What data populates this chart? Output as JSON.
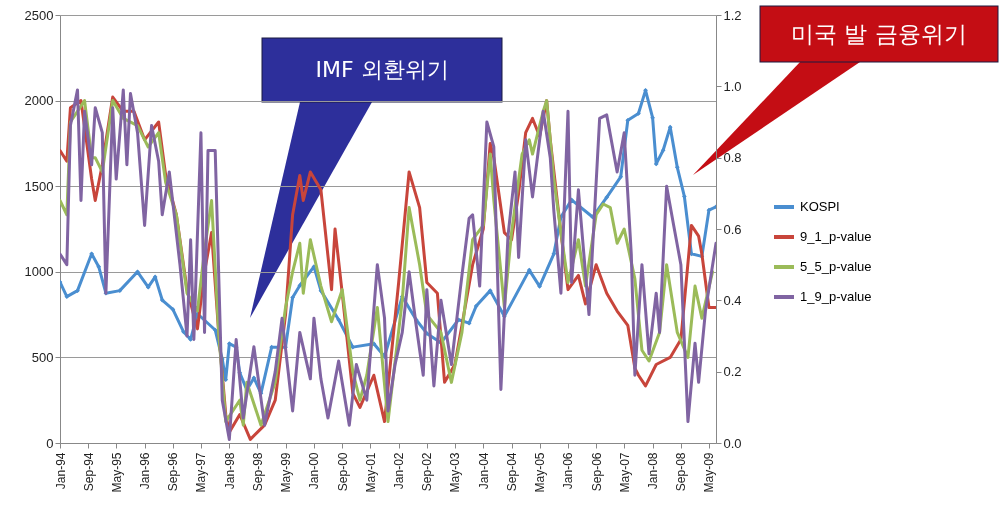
{
  "chart_data": {
    "type": "line",
    "annotations": [
      "IMF 외환위기",
      "미국 발 금융위기"
    ],
    "xlim": [
      "1994-01",
      "2009-07"
    ],
    "xticks": [
      {
        "value": "1994-01",
        "label": "Jan-94"
      },
      {
        "value": "1994-09",
        "label": "Sep-94"
      },
      {
        "value": "1995-05",
        "label": "May-95"
      },
      {
        "value": "1996-01",
        "label": "Jan-96"
      },
      {
        "value": "1996-09",
        "label": "Sep-96"
      },
      {
        "value": "1997-05",
        "label": "May-97"
      },
      {
        "value": "1998-01",
        "label": "Jan-98"
      },
      {
        "value": "1998-09",
        "label": "Sep-98"
      },
      {
        "value": "1999-05",
        "label": "May-99"
      },
      {
        "value": "2000-01",
        "label": "Jan-00"
      },
      {
        "value": "2000-09",
        "label": "Sep-00"
      },
      {
        "value": "2001-05",
        "label": "May-01"
      },
      {
        "value": "2002-01",
        "label": "Jan-02"
      },
      {
        "value": "2002-09",
        "label": "Sep-02"
      },
      {
        "value": "2003-05",
        "label": "May-03"
      },
      {
        "value": "2004-01",
        "label": "Jan-04"
      },
      {
        "value": "2004-09",
        "label": "Sep-04"
      },
      {
        "value": "2005-05",
        "label": "May-05"
      },
      {
        "value": "2006-01",
        "label": "Jan-06"
      },
      {
        "value": "2006-09",
        "label": "Sep-06"
      },
      {
        "value": "2007-05",
        "label": "May-07"
      },
      {
        "value": "2008-01",
        "label": "Jan-08"
      },
      {
        "value": "2008-09",
        "label": "Sep-08"
      },
      {
        "value": "2009-05",
        "label": "May-09"
      }
    ],
    "ylim": [
      0,
      2500
    ],
    "yticks": [
      0,
      500,
      1000,
      1500,
      2000,
      2500
    ],
    "y2lim": [
      0,
      1.2
    ],
    "y2ticks": [
      {
        "value": 0,
        "label": "0.0"
      },
      {
        "value": 0.2,
        "label": "0.2"
      },
      {
        "value": 0.4,
        "label": "0.4"
      },
      {
        "value": 0.6,
        "label": "0.6"
      },
      {
        "value": 0.8,
        "label": "0.8"
      },
      {
        "value": 1,
        "label": "1.0"
      },
      {
        "value": 1.2,
        "label": "1.2"
      }
    ],
    "grid": "y",
    "legend": "right",
    "line_style": "solid",
    "series": [
      {
        "name": "KOSPI",
        "color": "#4a8ed0",
        "marker": "diamond",
        "x": [
          "1994-01",
          "1994-03",
          "1994-06",
          "1994-10",
          "1994-12",
          "1995-02",
          "1995-06",
          "1995-11",
          "1996-02",
          "1996-04",
          "1996-06",
          "1996-09",
          "1996-12",
          "1997-02",
          "1997-04",
          "1997-09",
          "1997-11",
          "1997-12",
          "1998-01",
          "1998-03",
          "1998-04",
          "1998-06",
          "1998-08",
          "1998-10",
          "1999-01",
          "1999-05",
          "1999-07",
          "1999-09",
          "2000-01",
          "2000-03",
          "2000-08",
          "2000-12",
          "2001-06",
          "2001-09",
          "2002-02",
          "2002-06",
          "2002-09",
          "2003-01",
          "2003-06",
          "2003-09",
          "2003-11",
          "2004-03",
          "2004-07",
          "2005-02",
          "2005-05",
          "2005-09",
          "2005-11",
          "2006-02",
          "2006-08",
          "2006-12",
          "2007-04",
          "2007-06",
          "2007-09",
          "2007-11",
          "2008-01",
          "2008-02",
          "2008-04",
          "2008-06",
          "2008-08",
          "2008-10",
          "2008-12",
          "2009-03",
          "2009-05",
          "2009-07"
        ],
        "values": [
          940,
          855,
          890,
          1105,
          1030,
          875,
          890,
          1000,
          910,
          970,
          835,
          780,
          650,
          605,
          755,
          660,
          490,
          370,
          580,
          560,
          410,
          310,
          380,
          290,
          560,
          560,
          850,
          920,
          1030,
          890,
          720,
          560,
          580,
          505,
          855,
          720,
          640,
          585,
          720,
          700,
          800,
          890,
          740,
          1010,
          915,
          1105,
          1320,
          1420,
          1320,
          1435,
          1555,
          1885,
          1925,
          2060,
          1900,
          1630,
          1710,
          1845,
          1610,
          1440,
          1105,
          1090,
          1360,
          1380
        ]
      },
      {
        "name": "9_1_p-value",
        "color": "#c8453b",
        "axis": "y2",
        "x": [
          "1994-01",
          "1994-03",
          "1994-04",
          "1994-07",
          "1994-10",
          "1994-11",
          "1995-01",
          "1995-04",
          "1995-07",
          "1995-10",
          "1996-01",
          "1996-05",
          "1996-07",
          "1996-10",
          "1997-01",
          "1997-04",
          "1997-06",
          "1997-08",
          "1997-10",
          "1997-12",
          "1998-01",
          "1998-04",
          "1998-07",
          "1998-11",
          "1999-02",
          "1999-05",
          "1999-07",
          "1999-09",
          "1999-10",
          "1999-12",
          "2000-03",
          "2000-06",
          "2000-07",
          "2000-09",
          "2000-12",
          "2001-02",
          "2001-06",
          "2001-09",
          "2002-01",
          "2002-04",
          "2002-07",
          "2002-09",
          "2002-12",
          "2003-02",
          "2003-05",
          "2003-07",
          "2003-10",
          "2004-01",
          "2004-03",
          "2004-04",
          "2004-07",
          "2004-09",
          "2004-11",
          "2005-01",
          "2005-03",
          "2005-05",
          "2005-07",
          "2005-08",
          "2005-11",
          "2005-12",
          "2006-01",
          "2006-04",
          "2006-06",
          "2006-09",
          "2006-12",
          "2007-03",
          "2007-06",
          "2007-08",
          "2007-09",
          "2007-11",
          "2008-02",
          "2008-06",
          "2008-09",
          "2008-12",
          "2009-02",
          "2009-03",
          "2009-05",
          "2009-07"
        ],
        "values": [
          0.82,
          0.79,
          0.94,
          0.96,
          0.74,
          0.68,
          0.78,
          0.97,
          0.93,
          0.93,
          0.85,
          0.9,
          0.75,
          0.64,
          0.43,
          0.32,
          0.48,
          0.59,
          0.31,
          0.08,
          0.03,
          0.08,
          0.01,
          0.05,
          0.12,
          0.36,
          0.64,
          0.75,
          0.68,
          0.76,
          0.71,
          0.43,
          0.6,
          0.42,
          0.14,
          0.1,
          0.19,
          0.06,
          0.45,
          0.76,
          0.66,
          0.45,
          0.42,
          0.17,
          0.22,
          0.33,
          0.5,
          0.6,
          0.84,
          0.8,
          0.59,
          0.57,
          0.7,
          0.87,
          0.91,
          0.86,
          0.96,
          0.85,
          0.59,
          0.51,
          0.43,
          0.47,
          0.39,
          0.5,
          0.42,
          0.37,
          0.33,
          0.21,
          0.19,
          0.16,
          0.22,
          0.24,
          0.29,
          0.61,
          0.58,
          0.53,
          0.38,
          0.38
        ]
      },
      {
        "name": "5_5_p-value",
        "color": "#9bbb59",
        "axis": "y2",
        "x": [
          "1994-01",
          "1994-03",
          "1994-04",
          "1994-08",
          "1994-10",
          "1994-11",
          "1995-01",
          "1995-04",
          "1995-07",
          "1995-11",
          "1996-02",
          "1996-05",
          "1996-07",
          "1996-10",
          "1997-01",
          "1997-04",
          "1997-06",
          "1997-08",
          "1997-10",
          "1997-12",
          "1998-04",
          "1998-05",
          "1998-06",
          "1998-10",
          "1999-02",
          "1999-05",
          "1999-07",
          "1999-09",
          "1999-10",
          "1999-12",
          "2000-03",
          "2000-06",
          "2000-09",
          "2000-12",
          "2001-02",
          "2001-04",
          "2001-07",
          "2001-10",
          "2002-02",
          "2002-04",
          "2002-07",
          "2002-09",
          "2003-01",
          "2003-04",
          "2003-07",
          "2003-10",
          "2004-01",
          "2004-03",
          "2004-04",
          "2004-07",
          "2004-09",
          "2004-12",
          "2005-02",
          "2005-03",
          "2005-06",
          "2005-07",
          "2005-09",
          "2005-11",
          "2006-01",
          "2006-04",
          "2006-06",
          "2006-09",
          "2006-11",
          "2007-01",
          "2007-03",
          "2007-05",
          "2007-08",
          "2007-10",
          "2007-12",
          "2008-03",
          "2008-05",
          "2008-08",
          "2008-11",
          "2009-01",
          "2009-03",
          "2009-06"
        ],
        "values": [
          0.68,
          0.64,
          0.9,
          0.96,
          0.8,
          0.8,
          0.76,
          0.96,
          0.91,
          0.89,
          0.83,
          0.87,
          0.73,
          0.64,
          0.42,
          0.37,
          0.54,
          0.68,
          0.31,
          0.06,
          0.12,
          0.05,
          0.17,
          0.05,
          0.17,
          0.38,
          0.48,
          0.56,
          0.42,
          0.57,
          0.44,
          0.34,
          0.43,
          0.2,
          0.12,
          0.19,
          0.38,
          0.06,
          0.4,
          0.66,
          0.5,
          0.36,
          0.31,
          0.17,
          0.31,
          0.57,
          0.61,
          0.81,
          0.68,
          0.38,
          0.59,
          0.81,
          0.85,
          0.81,
          0.93,
          0.96,
          0.74,
          0.59,
          0.45,
          0.57,
          0.44,
          0.64,
          0.67,
          0.66,
          0.56,
          0.6,
          0.46,
          0.26,
          0.23,
          0.31,
          0.5,
          0.31,
          0.24,
          0.44,
          0.35,
          0.48
        ]
      },
      {
        "name": "1_9_p-value",
        "color": "#8064a2",
        "axis": "y2",
        "x": [
          "1994-01",
          "1994-03",
          "1994-04",
          "1994-06",
          "1994-07",
          "1994-08",
          "1994-10",
          "1994-11",
          "1995-01",
          "1995-02",
          "1995-04",
          "1995-05",
          "1995-07",
          "1995-08",
          "1995-09",
          "1995-11",
          "1996-01",
          "1996-03",
          "1996-05",
          "1996-06",
          "1996-08",
          "1996-11",
          "1997-01",
          "1997-02",
          "1997-03",
          "1997-05",
          "1997-06",
          "1997-07",
          "1997-09",
          "1997-11",
          "1998-01",
          "1998-03",
          "1998-05",
          "1998-08",
          "1998-11",
          "1999-02",
          "1999-04",
          "1999-07",
          "1999-09",
          "1999-12",
          "2000-01",
          "2000-03",
          "2000-05",
          "2000-08",
          "2000-11",
          "2001-01",
          "2001-04",
          "2001-07",
          "2001-09",
          "2001-10",
          "2001-12",
          "2002-02",
          "2002-04",
          "2002-06",
          "2002-08",
          "2002-09",
          "2002-11",
          "2003-01",
          "2003-04",
          "2003-07",
          "2003-09",
          "2003-10",
          "2003-12",
          "2004-02",
          "2004-04",
          "2004-06",
          "2004-08",
          "2004-10",
          "2004-11",
          "2005-01",
          "2005-03",
          "2005-06",
          "2005-08",
          "2005-09",
          "2005-11",
          "2006-01",
          "2006-02",
          "2006-04",
          "2006-07",
          "2006-10",
          "2006-12",
          "2007-03",
          "2007-05",
          "2007-07",
          "2007-08",
          "2007-10",
          "2007-12",
          "2008-02",
          "2008-03",
          "2008-05",
          "2008-07",
          "2008-09",
          "2008-11",
          "2009-01",
          "2009-02",
          "2009-04",
          "2009-07"
        ],
        "values": [
          0.53,
          0.5,
          0.89,
          0.99,
          0.68,
          0.93,
          0.78,
          0.94,
          0.87,
          0.42,
          0.94,
          0.74,
          0.99,
          0.78,
          0.98,
          0.87,
          0.61,
          0.89,
          0.79,
          0.64,
          0.76,
          0.5,
          0.3,
          0.57,
          0.29,
          0.87,
          0.31,
          0.82,
          0.82,
          0.12,
          0.01,
          0.29,
          0.07,
          0.27,
          0.05,
          0.2,
          0.35,
          0.09,
          0.31,
          0.18,
          0.35,
          0.18,
          0.07,
          0.23,
          0.05,
          0.22,
          0.12,
          0.5,
          0.35,
          0.09,
          0.22,
          0.31,
          0.48,
          0.33,
          0.19,
          0.43,
          0.16,
          0.4,
          0.22,
          0.47,
          0.63,
          0.64,
          0.44,
          0.9,
          0.83,
          0.15,
          0.58,
          0.76,
          0.52,
          0.85,
          0.69,
          0.93,
          0.8,
          0.65,
          0.42,
          0.93,
          0.45,
          0.71,
          0.36,
          0.91,
          0.92,
          0.76,
          0.87,
          0.53,
          0.19,
          0.5,
          0.25,
          0.42,
          0.31,
          0.72,
          0.61,
          0.5,
          0.06,
          0.28,
          0.17,
          0.37,
          0.56
        ]
      }
    ]
  }
}
